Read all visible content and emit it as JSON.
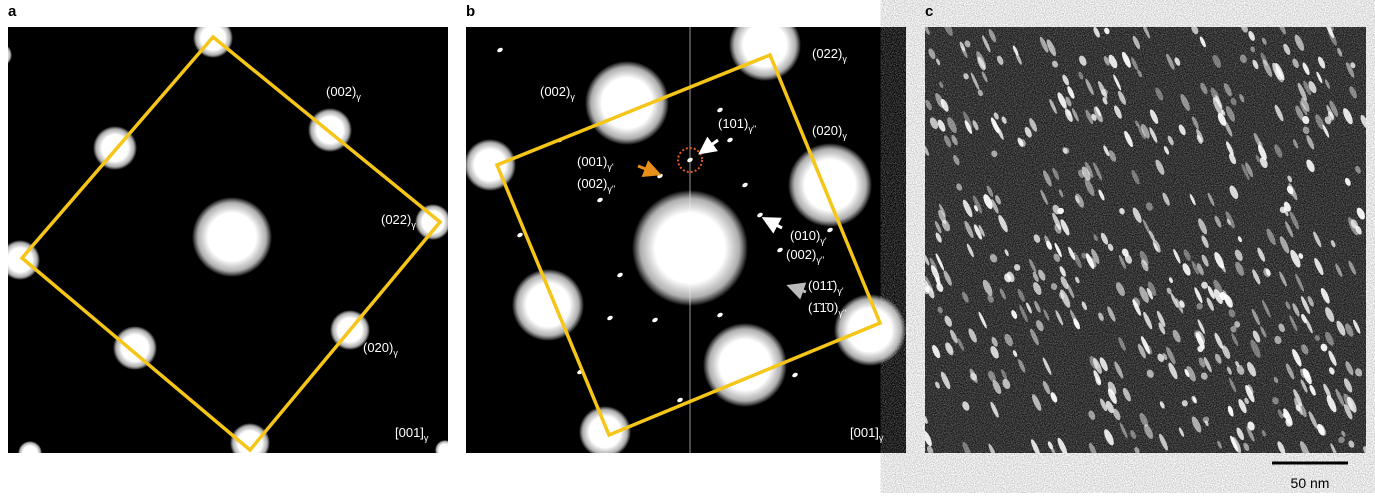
{
  "panels": [
    {
      "label": "a",
      "annotations": [
        {
          "text": "(002)",
          "sub": "γ"
        },
        {
          "text": "(022)",
          "sub": "γ"
        },
        {
          "text": "(020)",
          "sub": "γ"
        },
        {
          "text": "[001]",
          "sub": "γ"
        }
      ]
    },
    {
      "label": "b",
      "annotations": [
        {
          "text": "(022)",
          "sub": "γ"
        },
        {
          "text": "(002)",
          "sub": "γ"
        },
        {
          "text": "(020)",
          "sub": "γ"
        },
        {
          "text": "(101)",
          "sub": "γ''"
        },
        {
          "text": "(001)",
          "sub": "γ'"
        },
        {
          "text": "(002)",
          "sub": "γ''"
        },
        {
          "text": "(010)",
          "sub": "γ'"
        },
        {
          "text": "(002)",
          "sub": "γ''"
        },
        {
          "text": "(011̄)",
          "sub": "γ'"
        },
        {
          "text": "(1̄1̄0)",
          "sub": "γ''"
        },
        {
          "text": "[001]",
          "sub": "γ"
        }
      ]
    },
    {
      "label": "c",
      "annotations": []
    }
  ],
  "scale_bar": "50 nm"
}
